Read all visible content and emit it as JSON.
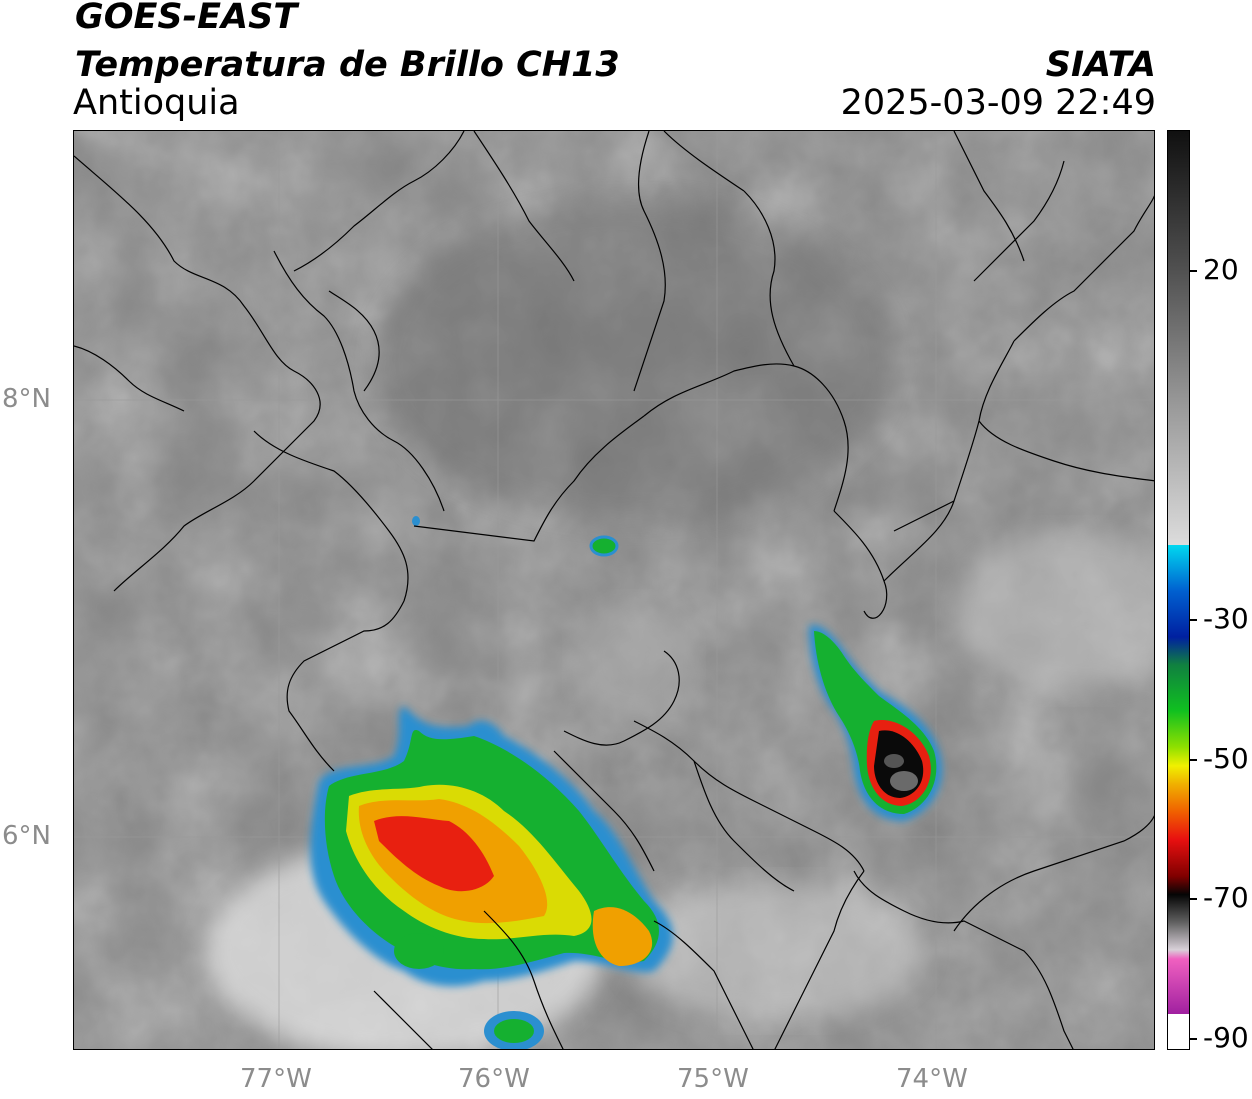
{
  "header": {
    "satellite": "GOES-EAST",
    "product": "Temperatura de Brillo CH13",
    "region": "Antioquia",
    "agency": "SIATA",
    "datetime": "2025-03-09 22:49"
  },
  "map": {
    "lat_labels": [
      "8°N",
      "6°N"
    ],
    "lon_labels": [
      "77°W",
      "76°W",
      "75°W",
      "74°W"
    ]
  },
  "colorbar": {
    "ticks": [
      "20",
      "-30",
      "-50",
      "-70",
      "-90"
    ],
    "colors": {
      "gray_dark": "#141414",
      "gray_light": "#f2f2f2",
      "cyan": "#00d8f0",
      "blue": "#0030a0",
      "green": "#10c020",
      "yellow": "#f0f000",
      "orange": "#f0a000",
      "red": "#e81010",
      "black": "#050505",
      "magenta": "#e040c0"
    }
  }
}
